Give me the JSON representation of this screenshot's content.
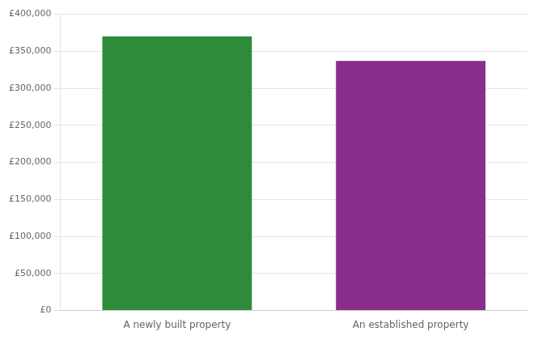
{
  "chart_data": {
    "type": "bar",
    "categories": [
      "A newly built property",
      "An established property"
    ],
    "values": [
      370000,
      337000
    ],
    "colors": [
      "#2e8b3a",
      "#8b2d8b"
    ],
    "ylim": [
      0,
      400000
    ],
    "yticks": [
      {
        "value": 0,
        "label": "£0"
      },
      {
        "value": 50000,
        "label": "£50,000"
      },
      {
        "value": 100000,
        "label": "£100,000"
      },
      {
        "value": 150000,
        "label": "£150,000"
      },
      {
        "value": 200000,
        "label": "£200,000"
      },
      {
        "value": 250000,
        "label": "£250,000"
      },
      {
        "value": 300000,
        "label": "£300,000"
      },
      {
        "value": 350000,
        "label": "£350,000"
      },
      {
        "value": 400000,
        "label": "£400,000"
      }
    ],
    "grid": true
  }
}
